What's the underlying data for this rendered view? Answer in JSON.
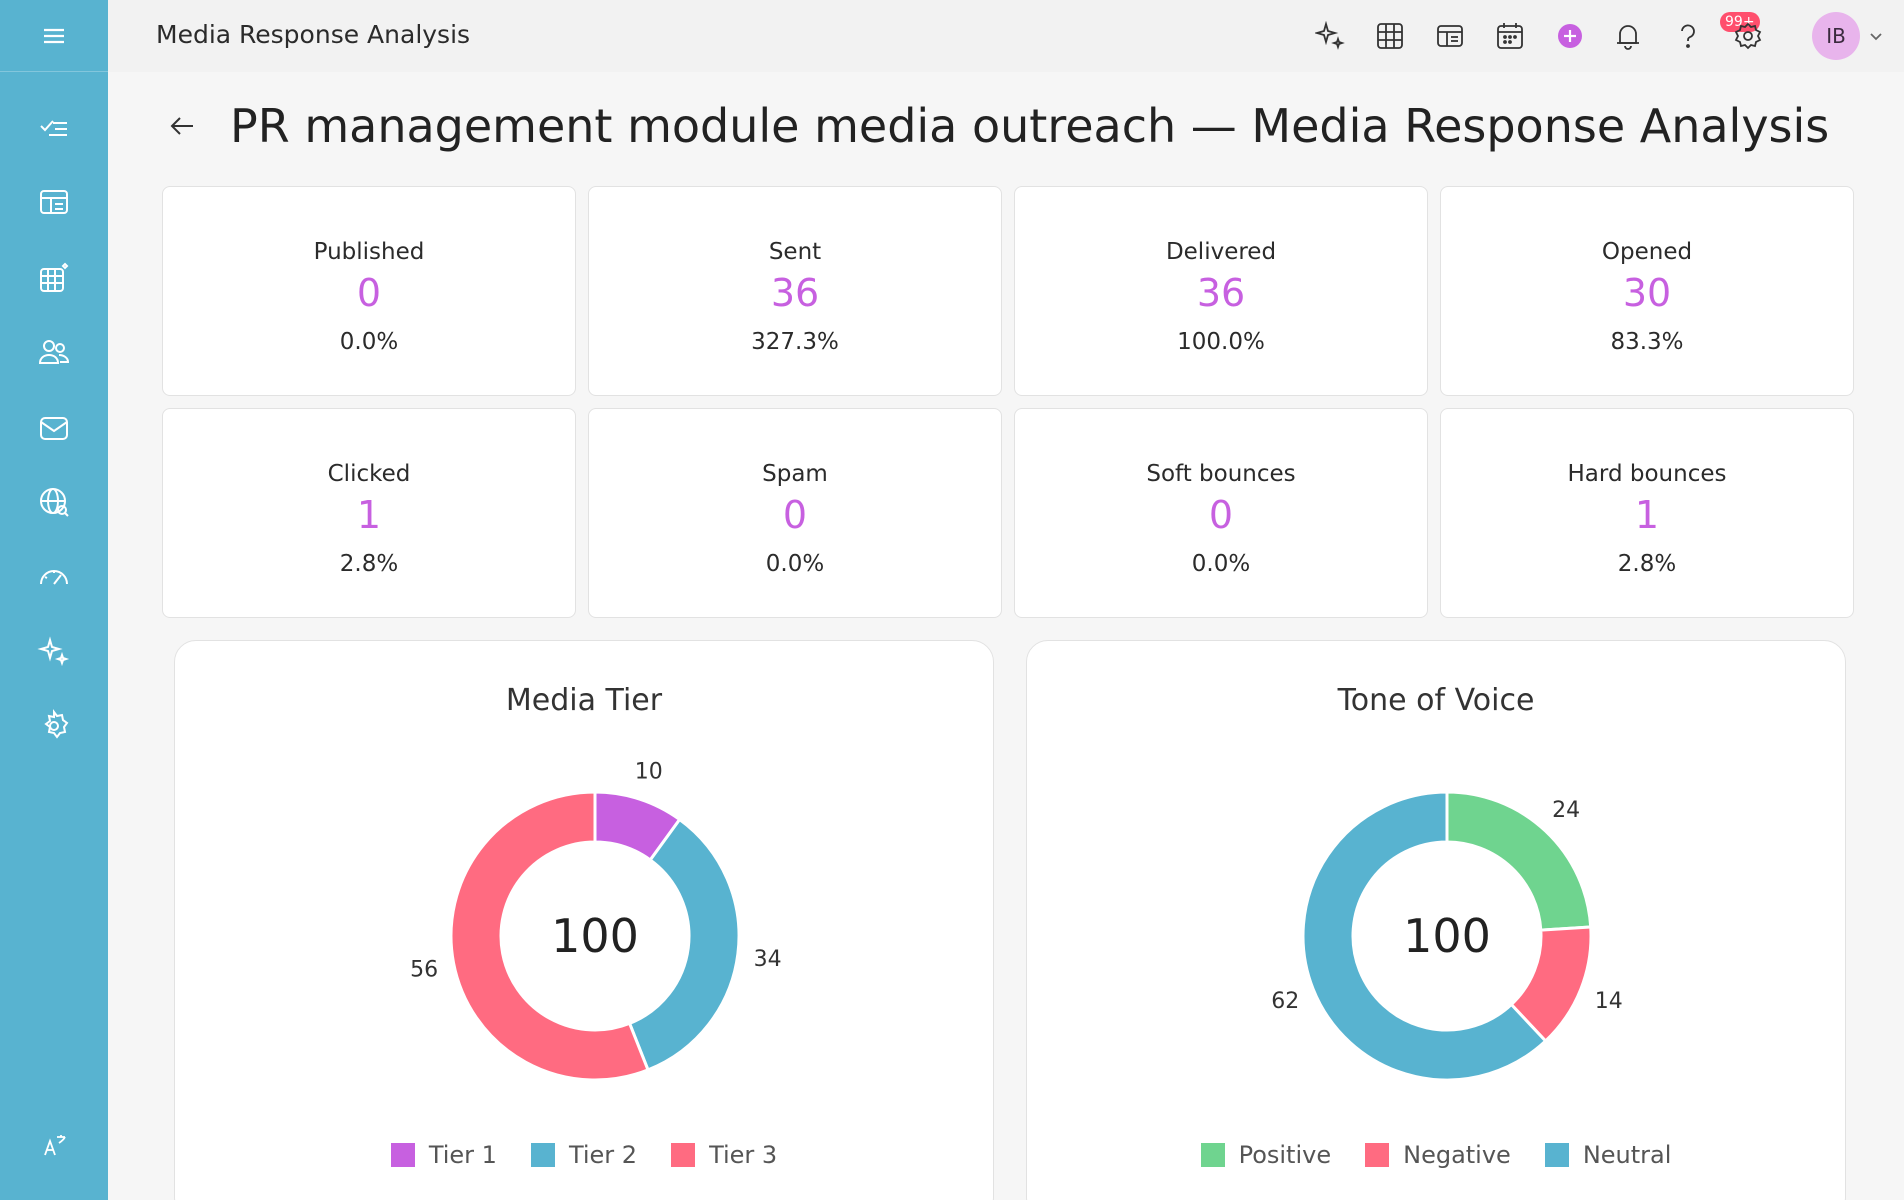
{
  "app": {
    "title": "Media Response Analysis"
  },
  "user": {
    "initials": "IB"
  },
  "notifications": {
    "badge": "99+"
  },
  "page": {
    "title": "PR management module media outreach — Media Response Analysis"
  },
  "stats": [
    {
      "label": "Published",
      "value": "0",
      "pct": "0.0%"
    },
    {
      "label": "Sent",
      "value": "36",
      "pct": "327.3%"
    },
    {
      "label": "Delivered",
      "value": "36",
      "pct": "100.0%"
    },
    {
      "label": "Opened",
      "value": "30",
      "pct": "83.3%"
    },
    {
      "label": "Clicked",
      "value": "1",
      "pct": "2.8%"
    },
    {
      "label": "Spam",
      "value": "0",
      "pct": "0.0%"
    },
    {
      "label": "Soft bounces",
      "value": "0",
      "pct": "0.0%"
    },
    {
      "label": "Hard bounces",
      "value": "1",
      "pct": "2.8%"
    }
  ],
  "colors": {
    "accent": "#c760e0",
    "sidebar": "#58b3d0"
  },
  "chart_data": [
    {
      "type": "pie",
      "title": "Media Tier",
      "total": "100",
      "categories": [
        "Tier 1",
        "Tier 2",
        "Tier 3"
      ],
      "values": [
        10,
        34,
        56
      ],
      "colors": [
        "#c760e0",
        "#58b3d0",
        "#ff6b81"
      ],
      "legend": "bottom"
    },
    {
      "type": "pie",
      "title": "Tone of Voice",
      "total": "100",
      "categories": [
        "Positive",
        "Negative",
        "Neutral"
      ],
      "values": [
        24,
        14,
        62
      ],
      "colors": [
        "#6fd48f",
        "#ff6b81",
        "#58b3d0"
      ],
      "legend": "bottom"
    }
  ]
}
